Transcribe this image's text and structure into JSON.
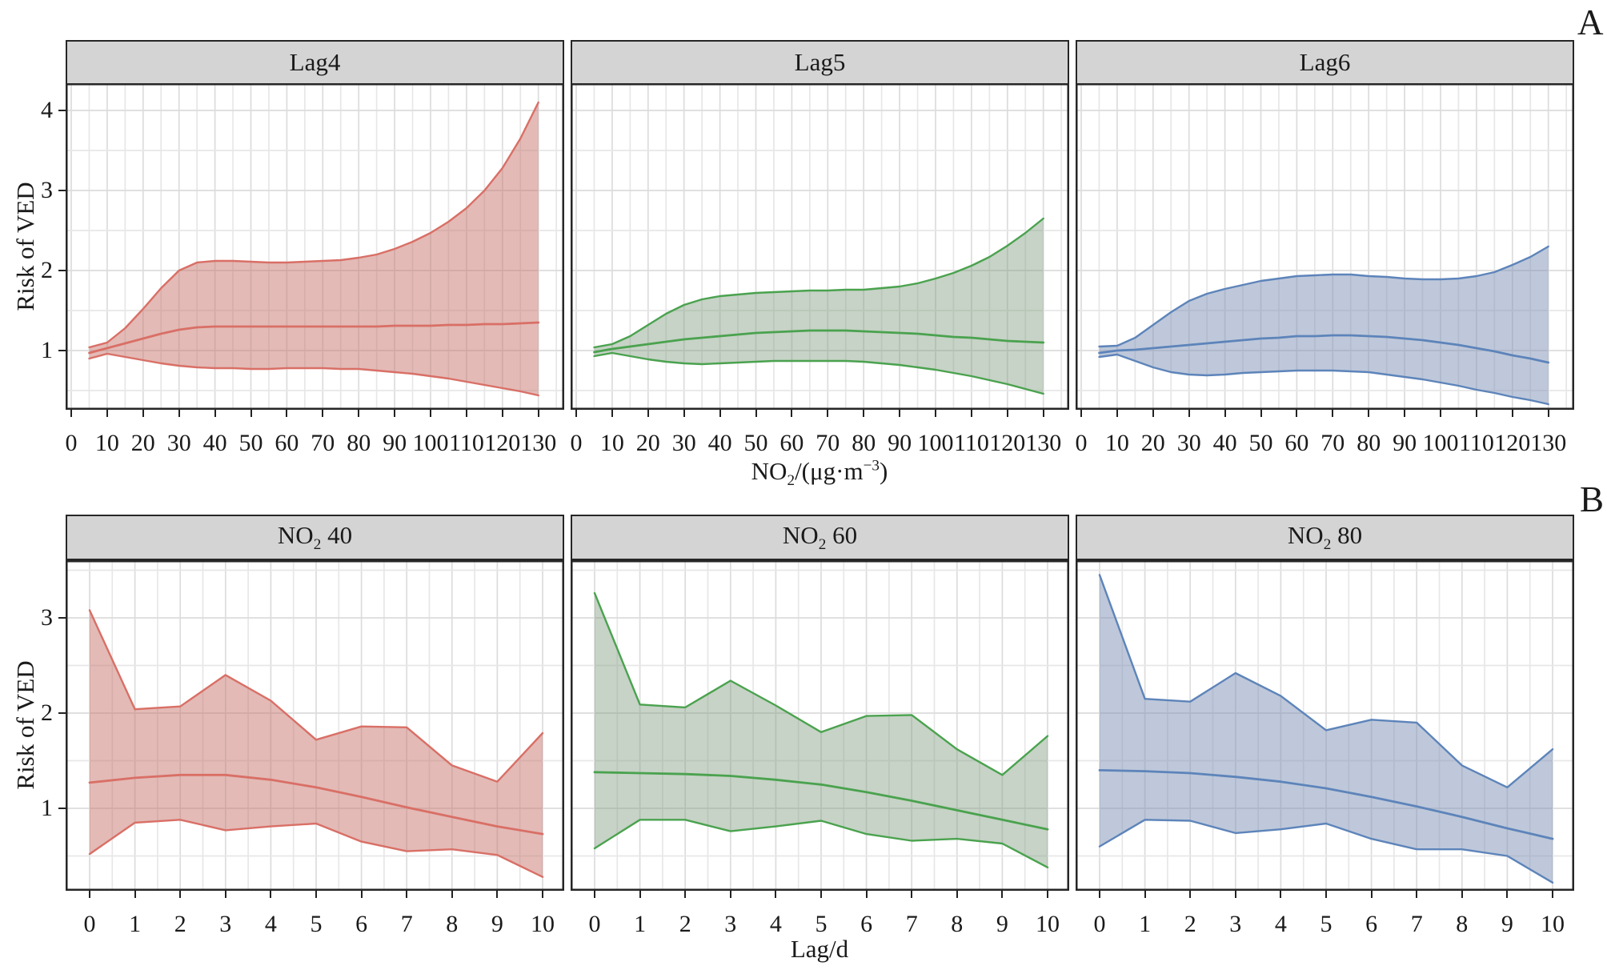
{
  "figure": {
    "label_a": "A",
    "label_b": "B"
  },
  "colors": {
    "red_line": "#d96f66",
    "red_fill": "rgba(200,118,110,0.5)",
    "green_line": "#4aa24e",
    "green_fill": "rgba(128,158,128,0.45)",
    "blue_line": "#5d84ba",
    "blue_fill": "rgba(125,145,182,0.5)",
    "header_bg": "#d4d4d4",
    "panel_border": "#262626",
    "grid_major": "#dcdcdc",
    "grid_minor": "#e7e7e7"
  },
  "chart_data": [
    {
      "type": "area",
      "row": "A",
      "title": "Lag4",
      "color_key": "red",
      "xlabel": "NO_2_/(μg·m^−3^)",
      "ylabel": "Risk of VED",
      "xticks": [
        0,
        10,
        20,
        30,
        40,
        50,
        60,
        70,
        80,
        90,
        100,
        110,
        120,
        130
      ],
      "yticks": [
        1,
        2,
        3,
        4
      ],
      "xlim": [
        -1.6,
        137.2
      ],
      "ylim": [
        0.26,
        4.34
      ],
      "grid": "on",
      "x": [
        5,
        10,
        15,
        20,
        25,
        30,
        35,
        40,
        45,
        50,
        55,
        60,
        65,
        70,
        75,
        80,
        85,
        90,
        95,
        100,
        105,
        110,
        115,
        120,
        125,
        130
      ],
      "series": [
        {
          "name": "estimate",
          "values": [
            0.97,
            1.03,
            1.09,
            1.15,
            1.21,
            1.26,
            1.29,
            1.3,
            1.3,
            1.3,
            1.3,
            1.3,
            1.3,
            1.3,
            1.3,
            1.3,
            1.3,
            1.31,
            1.31,
            1.31,
            1.32,
            1.32,
            1.33,
            1.33,
            1.34,
            1.35
          ]
        },
        {
          "name": "upper_ci",
          "values": [
            1.04,
            1.1,
            1.28,
            1.52,
            1.78,
            2.0,
            2.1,
            2.12,
            2.12,
            2.11,
            2.1,
            2.1,
            2.11,
            2.12,
            2.13,
            2.16,
            2.2,
            2.27,
            2.36,
            2.47,
            2.61,
            2.78,
            3.0,
            3.28,
            3.65,
            4.1
          ]
        },
        {
          "name": "lower_ci",
          "values": [
            0.9,
            0.96,
            0.92,
            0.88,
            0.84,
            0.81,
            0.79,
            0.78,
            0.78,
            0.77,
            0.77,
            0.78,
            0.78,
            0.78,
            0.77,
            0.77,
            0.75,
            0.73,
            0.71,
            0.68,
            0.65,
            0.61,
            0.57,
            0.53,
            0.49,
            0.44
          ]
        }
      ]
    },
    {
      "type": "area",
      "row": "A",
      "title": "Lag5",
      "color_key": "green",
      "xlabel": "NO_2_/(μg·m^−3^)",
      "ylabel": "Risk of VED",
      "xticks": [
        0,
        10,
        20,
        30,
        40,
        50,
        60,
        70,
        80,
        90,
        100,
        110,
        120,
        130
      ],
      "yticks": [
        1,
        2,
        3,
        4
      ],
      "xlim": [
        -1.6,
        137.2
      ],
      "ylim": [
        0.26,
        4.34
      ],
      "grid": "on",
      "x": [
        5,
        10,
        15,
        20,
        25,
        30,
        35,
        40,
        45,
        50,
        55,
        60,
        65,
        70,
        75,
        80,
        85,
        90,
        95,
        100,
        105,
        110,
        115,
        120,
        125,
        130
      ],
      "series": [
        {
          "name": "estimate",
          "values": [
            0.98,
            1.02,
            1.05,
            1.08,
            1.11,
            1.14,
            1.16,
            1.18,
            1.2,
            1.22,
            1.23,
            1.24,
            1.25,
            1.25,
            1.25,
            1.24,
            1.23,
            1.22,
            1.21,
            1.19,
            1.17,
            1.16,
            1.14,
            1.12,
            1.11,
            1.1
          ]
        },
        {
          "name": "upper_ci",
          "values": [
            1.04,
            1.08,
            1.18,
            1.32,
            1.46,
            1.57,
            1.64,
            1.68,
            1.7,
            1.72,
            1.73,
            1.74,
            1.75,
            1.75,
            1.76,
            1.76,
            1.78,
            1.8,
            1.84,
            1.9,
            1.97,
            2.06,
            2.17,
            2.31,
            2.47,
            2.65
          ]
        },
        {
          "name": "lower_ci",
          "values": [
            0.93,
            0.97,
            0.93,
            0.89,
            0.86,
            0.84,
            0.83,
            0.84,
            0.85,
            0.86,
            0.87,
            0.87,
            0.87,
            0.87,
            0.87,
            0.86,
            0.84,
            0.82,
            0.79,
            0.76,
            0.72,
            0.68,
            0.63,
            0.58,
            0.52,
            0.46
          ]
        }
      ]
    },
    {
      "type": "area",
      "row": "A",
      "title": "Lag6",
      "color_key": "blue",
      "xlabel": "NO_2_/(μg·m^−3^)",
      "ylabel": "Risk of VED",
      "xticks": [
        0,
        10,
        20,
        30,
        40,
        50,
        60,
        70,
        80,
        90,
        100,
        110,
        120,
        130
      ],
      "yticks": [
        1,
        2,
        3,
        4
      ],
      "xlim": [
        -1.6,
        137.2
      ],
      "ylim": [
        0.26,
        4.34
      ],
      "grid": "on",
      "x": [
        5,
        10,
        15,
        20,
        25,
        30,
        35,
        40,
        45,
        50,
        55,
        60,
        65,
        70,
        75,
        80,
        85,
        90,
        95,
        100,
        105,
        110,
        115,
        120,
        125,
        130
      ],
      "series": [
        {
          "name": "estimate",
          "values": [
            0.97,
            1.0,
            1.01,
            1.03,
            1.05,
            1.07,
            1.09,
            1.11,
            1.13,
            1.15,
            1.16,
            1.18,
            1.18,
            1.19,
            1.19,
            1.18,
            1.17,
            1.15,
            1.13,
            1.1,
            1.07,
            1.03,
            0.99,
            0.94,
            0.9,
            0.85
          ]
        },
        {
          "name": "upper_ci",
          "values": [
            1.05,
            1.06,
            1.16,
            1.32,
            1.48,
            1.62,
            1.71,
            1.77,
            1.82,
            1.87,
            1.9,
            1.93,
            1.94,
            1.95,
            1.95,
            1.93,
            1.92,
            1.9,
            1.89,
            1.89,
            1.9,
            1.93,
            1.98,
            2.07,
            2.17,
            2.3
          ]
        },
        {
          "name": "lower_ci",
          "values": [
            0.92,
            0.95,
            0.87,
            0.79,
            0.73,
            0.7,
            0.69,
            0.7,
            0.72,
            0.73,
            0.74,
            0.75,
            0.75,
            0.75,
            0.74,
            0.73,
            0.7,
            0.67,
            0.64,
            0.6,
            0.56,
            0.51,
            0.47,
            0.42,
            0.38,
            0.33
          ]
        }
      ]
    },
    {
      "type": "area",
      "row": "B",
      "title": "NO_2_ 40",
      "color_key": "red",
      "xlabel": "Lag/d",
      "ylabel": "Risk of VED",
      "xticks": [
        0,
        1,
        2,
        3,
        4,
        5,
        6,
        7,
        8,
        9,
        10
      ],
      "yticks": [
        1,
        2,
        3
      ],
      "xlim": [
        -0.53,
        10.48
      ],
      "ylim": [
        0.13,
        3.6
      ],
      "grid": "on",
      "x": [
        0,
        1,
        2,
        3,
        4,
        5,
        6,
        7,
        8,
        9,
        10
      ],
      "series": [
        {
          "name": "estimate",
          "values": [
            1.27,
            1.32,
            1.35,
            1.35,
            1.3,
            1.22,
            1.12,
            1.01,
            0.91,
            0.81,
            0.73
          ]
        },
        {
          "name": "upper_ci",
          "values": [
            3.08,
            2.04,
            2.07,
            2.4,
            2.13,
            1.72,
            1.86,
            1.85,
            1.45,
            1.28,
            1.79
          ]
        },
        {
          "name": "lower_ci",
          "values": [
            0.52,
            0.85,
            0.88,
            0.77,
            0.81,
            0.84,
            0.65,
            0.55,
            0.57,
            0.51,
            0.28
          ]
        }
      ]
    },
    {
      "type": "area",
      "row": "B",
      "title": "NO_2_ 60",
      "color_key": "green",
      "xlabel": "Lag/d",
      "ylabel": "Risk of VED",
      "xticks": [
        0,
        1,
        2,
        3,
        4,
        5,
        6,
        7,
        8,
        9,
        10
      ],
      "yticks": [
        1,
        2,
        3
      ],
      "xlim": [
        -0.53,
        10.48
      ],
      "ylim": [
        0.13,
        3.6
      ],
      "grid": "on",
      "x": [
        0,
        1,
        2,
        3,
        4,
        5,
        6,
        7,
        8,
        9,
        10
      ],
      "series": [
        {
          "name": "estimate",
          "values": [
            1.38,
            1.37,
            1.36,
            1.34,
            1.3,
            1.25,
            1.17,
            1.08,
            0.98,
            0.88,
            0.78
          ]
        },
        {
          "name": "upper_ci",
          "values": [
            3.26,
            2.09,
            2.06,
            2.34,
            2.08,
            1.8,
            1.97,
            1.98,
            1.62,
            1.35,
            1.76
          ]
        },
        {
          "name": "lower_ci",
          "values": [
            0.58,
            0.88,
            0.88,
            0.76,
            0.81,
            0.87,
            0.73,
            0.66,
            0.68,
            0.63,
            0.38
          ]
        }
      ]
    },
    {
      "type": "area",
      "row": "B",
      "title": "NO_2_ 80",
      "color_key": "blue",
      "xlabel": "Lag/d",
      "ylabel": "Risk of VED",
      "xticks": [
        0,
        1,
        2,
        3,
        4,
        5,
        6,
        7,
        8,
        9,
        10
      ],
      "yticks": [
        1,
        2,
        3
      ],
      "xlim": [
        -0.53,
        10.48
      ],
      "ylim": [
        0.13,
        3.6
      ],
      "grid": "on",
      "x": [
        0,
        1,
        2,
        3,
        4,
        5,
        6,
        7,
        8,
        9,
        10
      ],
      "series": [
        {
          "name": "estimate",
          "values": [
            1.4,
            1.39,
            1.37,
            1.33,
            1.28,
            1.21,
            1.12,
            1.02,
            0.91,
            0.79,
            0.68
          ]
        },
        {
          "name": "upper_ci",
          "values": [
            3.45,
            2.15,
            2.12,
            2.42,
            2.18,
            1.82,
            1.93,
            1.9,
            1.45,
            1.22,
            1.62
          ]
        },
        {
          "name": "lower_ci",
          "values": [
            0.6,
            0.88,
            0.87,
            0.74,
            0.78,
            0.84,
            0.68,
            0.57,
            0.57,
            0.5,
            0.22
          ]
        }
      ]
    }
  ]
}
